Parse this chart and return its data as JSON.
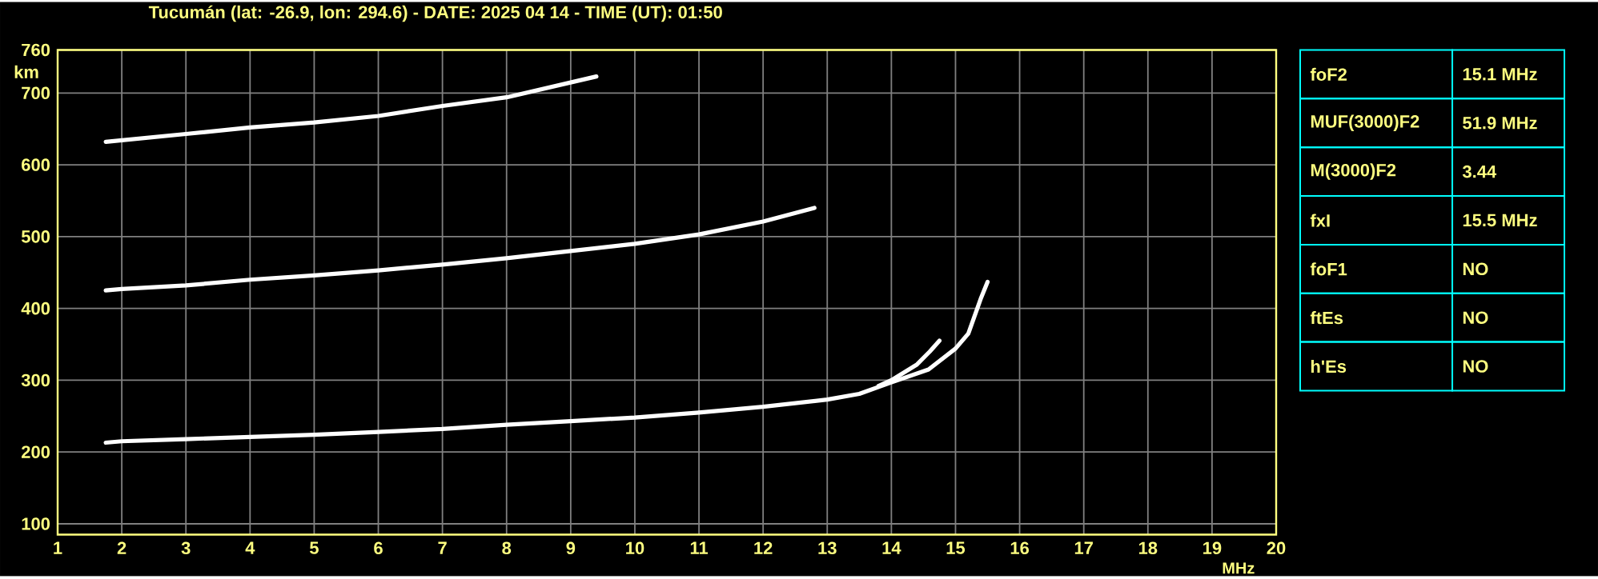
{
  "chart_data": [
    {
      "type": "line",
      "title": "Tucumán (lat: -26.9, lon: 294.6) - DATE: 2025 04 14 - TIME (UT): 01:50",
      "xlabel": "MHz",
      "ylabel": "km",
      "xlim": [
        1,
        20
      ],
      "xticks": [
        1,
        2,
        3,
        4,
        5,
        6,
        7,
        8,
        9,
        10,
        11,
        12,
        13,
        14,
        15,
        16,
        17,
        18,
        19,
        20
      ],
      "ylim": [
        85,
        760
      ],
      "yticks": [
        100,
        200,
        300,
        400,
        500,
        600,
        700,
        760
      ],
      "grid": true,
      "line_style": "solid",
      "series": [
        {
          "color": "#ffffff",
          "x": [
            1.75,
            2,
            3,
            4,
            5,
            6,
            7,
            8,
            9,
            10,
            11,
            12,
            13,
            13.5,
            14,
            14.58,
            15,
            15.2,
            15.4,
            15.5
          ],
          "values": [
            213,
            215,
            218,
            221,
            224,
            228,
            232,
            238,
            243,
            248,
            255,
            263,
            273,
            281,
            297,
            315,
            344,
            365,
            415,
            437
          ]
        },
        {
          "color": "#ffffff",
          "x": [
            13.8,
            14,
            14.4,
            14.6,
            14.75
          ],
          "values": [
            292,
            300,
            322,
            340,
            355
          ]
        },
        {
          "color": "#ffffff",
          "x": [
            1.75,
            2,
            3,
            4,
            5,
            6,
            7,
            8,
            9,
            10,
            11,
            12,
            12.8
          ],
          "values": [
            425,
            427,
            432,
            440,
            446,
            453,
            461,
            470,
            480,
            490,
            503,
            521,
            540
          ]
        },
        {
          "color": "#ffffff",
          "x": [
            1.75,
            3,
            4,
            5,
            6,
            7,
            8,
            9.4
          ],
          "values": [
            632,
            643,
            652,
            659,
            668,
            682,
            694,
            723
          ]
        }
      ]
    },
    {
      "type": "other",
      "annotations": [
        "foF2",
        "15.1 MHz",
        "MUF(3000)F2",
        "51.9 MHz",
        "M(3000)F2",
        "3.44",
        "fxI",
        "15.5 MHz",
        "foF1",
        "NO",
        "ftEs",
        "NO",
        "h'Es",
        "NO"
      ]
    }
  ]
}
